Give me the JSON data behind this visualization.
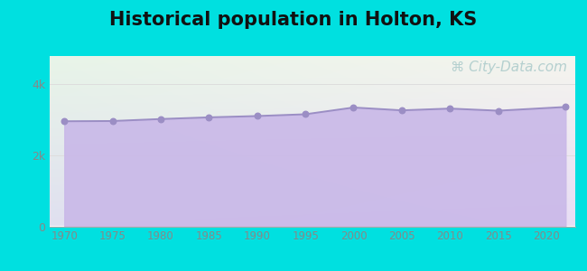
{
  "title": "Historical population in Holton, KS",
  "title_fontsize": 15,
  "title_fontweight": "bold",
  "title_color": "#111111",
  "years": [
    1970,
    1975,
    1980,
    1985,
    1990,
    1995,
    2000,
    2005,
    2010,
    2015,
    2022
  ],
  "population": [
    2953,
    2960,
    3016,
    3063,
    3100,
    3150,
    3340,
    3260,
    3310,
    3250,
    3355
  ],
  "line_color": "#9b8ec4",
  "fill_color": "#c9b8e8",
  "fill_alpha": 0.9,
  "marker_color": "#9b8ec4",
  "marker_size": 22,
  "bg_outer": "#00e0e0",
  "bg_inner_topleft": "#e8f5e8",
  "bg_inner_bottomright": "#e8ddf5",
  "ytick_labels": [
    "0",
    "2k",
    "4k"
  ],
  "ytick_values": [
    0,
    2000,
    4000
  ],
  "ylim": [
    0,
    4800
  ],
  "xlim": [
    1968.5,
    2023
  ],
  "xtick_values": [
    1970,
    1975,
    1980,
    1985,
    1990,
    1995,
    2000,
    2005,
    2010,
    2015,
    2020
  ],
  "watermark": "⌘ City-Data.com",
  "watermark_color": "#aacaca",
  "watermark_fontsize": 11,
  "grid_color": "#dddddd",
  "axis_color": "#aaaaaa",
  "tick_color": "#888888",
  "tick_fontsize": 8.5
}
